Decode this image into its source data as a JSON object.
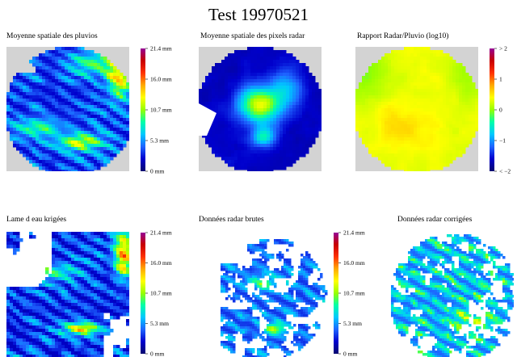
{
  "title": "Test 19970521",
  "colormap": [
    "#08086e",
    "#0000cd",
    "#1e64ff",
    "#00c8ff",
    "#00ffaa",
    "#96ff00",
    "#ffff00",
    "#ffaa00",
    "#ff3200",
    "#c80000",
    "#960096"
  ],
  "chart_data": [
    {
      "type": "heatmap",
      "title": "Moyenne spatiale des pluvios",
      "mask": "disc-on-gray",
      "colorbar": {
        "ticks": [
          "0 mm",
          "5.3 mm",
          "10.7 mm",
          "16.0 mm",
          "21.4 mm"
        ],
        "range": [
          0,
          21.4
        ]
      }
    },
    {
      "type": "heatmap",
      "title": "Moyenne spatiale des pixels radar",
      "mask": "disc-on-gray",
      "colorbar": null
    },
    {
      "type": "heatmap",
      "title": "Rapport Radar/Pluvio (log10)",
      "mask": "disc-on-gray",
      "colorbar": {
        "ticks": [
          "< −2",
          "−1",
          "0",
          "1",
          "> 2"
        ],
        "range": [
          -2,
          2
        ]
      }
    },
    {
      "type": "heatmap",
      "title": "Lame d eau krigées",
      "mask": "none",
      "colorbar": {
        "ticks": [
          "0 mm",
          "5.3 mm",
          "10.7 mm",
          "16.0 mm",
          "21.4 mm"
        ],
        "range": [
          0,
          21.4
        ]
      }
    },
    {
      "type": "heatmap",
      "title": "Données radar brutes",
      "mask": "radar-sector",
      "colorbar": {
        "ticks": [
          "0 mm",
          "5.3 mm",
          "10.7 mm",
          "16.0 mm",
          "21.4 mm"
        ],
        "range": [
          0,
          21.4
        ]
      }
    },
    {
      "type": "heatmap",
      "title": "Données radar corrigées",
      "mask": "radar-sector",
      "colorbar": null
    }
  ]
}
